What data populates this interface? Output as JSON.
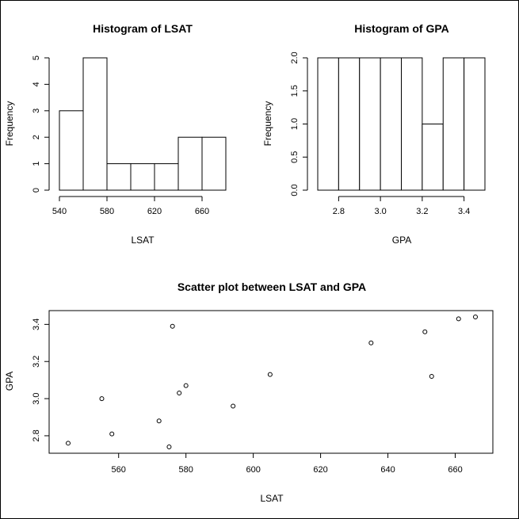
{
  "chart_data": [
    {
      "type": "bar",
      "title": "Histogram of LSAT",
      "xlabel": "LSAT",
      "ylabel": "Frequency",
      "bins": [
        [
          540,
          560
        ],
        [
          560,
          580
        ],
        [
          580,
          600
        ],
        [
          600,
          620
        ],
        [
          620,
          640
        ],
        [
          640,
          660
        ],
        [
          660,
          680
        ]
      ],
      "values": [
        3,
        5,
        1,
        1,
        1,
        2,
        2
      ],
      "xlim": [
        540,
        680
      ],
      "ylim": [
        0,
        5
      ],
      "xticks": [
        540,
        580,
        620,
        660
      ],
      "yticks": [
        0,
        1,
        2,
        3,
        4,
        5
      ],
      "grid": false
    },
    {
      "type": "bar",
      "title": "Histogram of GPA",
      "xlabel": "GPA",
      "ylabel": "Frequency",
      "bins": [
        [
          2.7,
          2.8
        ],
        [
          2.8,
          2.9
        ],
        [
          2.9,
          3.0
        ],
        [
          3.0,
          3.1
        ],
        [
          3.1,
          3.2
        ],
        [
          3.2,
          3.3
        ],
        [
          3.3,
          3.4
        ],
        [
          3.4,
          3.5
        ]
      ],
      "values": [
        2,
        2,
        2,
        2,
        2,
        1,
        2,
        2
      ],
      "xlim": [
        2.7,
        3.5
      ],
      "ylim": [
        0,
        2
      ],
      "xticks": [
        2.8,
        3.0,
        3.2,
        3.4
      ],
      "yticks": [
        0.0,
        0.5,
        1.0,
        1.5,
        2.0
      ],
      "grid": false
    },
    {
      "type": "scatter",
      "title": "Scatter plot between LSAT and GPA",
      "xlabel": "LSAT",
      "ylabel": "GPA",
      "points": [
        {
          "x": 545,
          "y": 2.76
        },
        {
          "x": 555,
          "y": 3.0
        },
        {
          "x": 558,
          "y": 2.81
        },
        {
          "x": 572,
          "y": 2.88
        },
        {
          "x": 575,
          "y": 2.74
        },
        {
          "x": 576,
          "y": 3.39
        },
        {
          "x": 578,
          "y": 3.03
        },
        {
          "x": 580,
          "y": 3.07
        },
        {
          "x": 594,
          "y": 2.96
        },
        {
          "x": 605,
          "y": 3.13
        },
        {
          "x": 635,
          "y": 3.3
        },
        {
          "x": 651,
          "y": 3.36
        },
        {
          "x": 653,
          "y": 3.12
        },
        {
          "x": 661,
          "y": 3.43
        },
        {
          "x": 666,
          "y": 3.44
        }
      ],
      "xticks": [
        560,
        580,
        600,
        620,
        640,
        660
      ],
      "yticks": [
        2.8,
        3.0,
        3.2,
        3.4
      ],
      "grid": false
    }
  ]
}
